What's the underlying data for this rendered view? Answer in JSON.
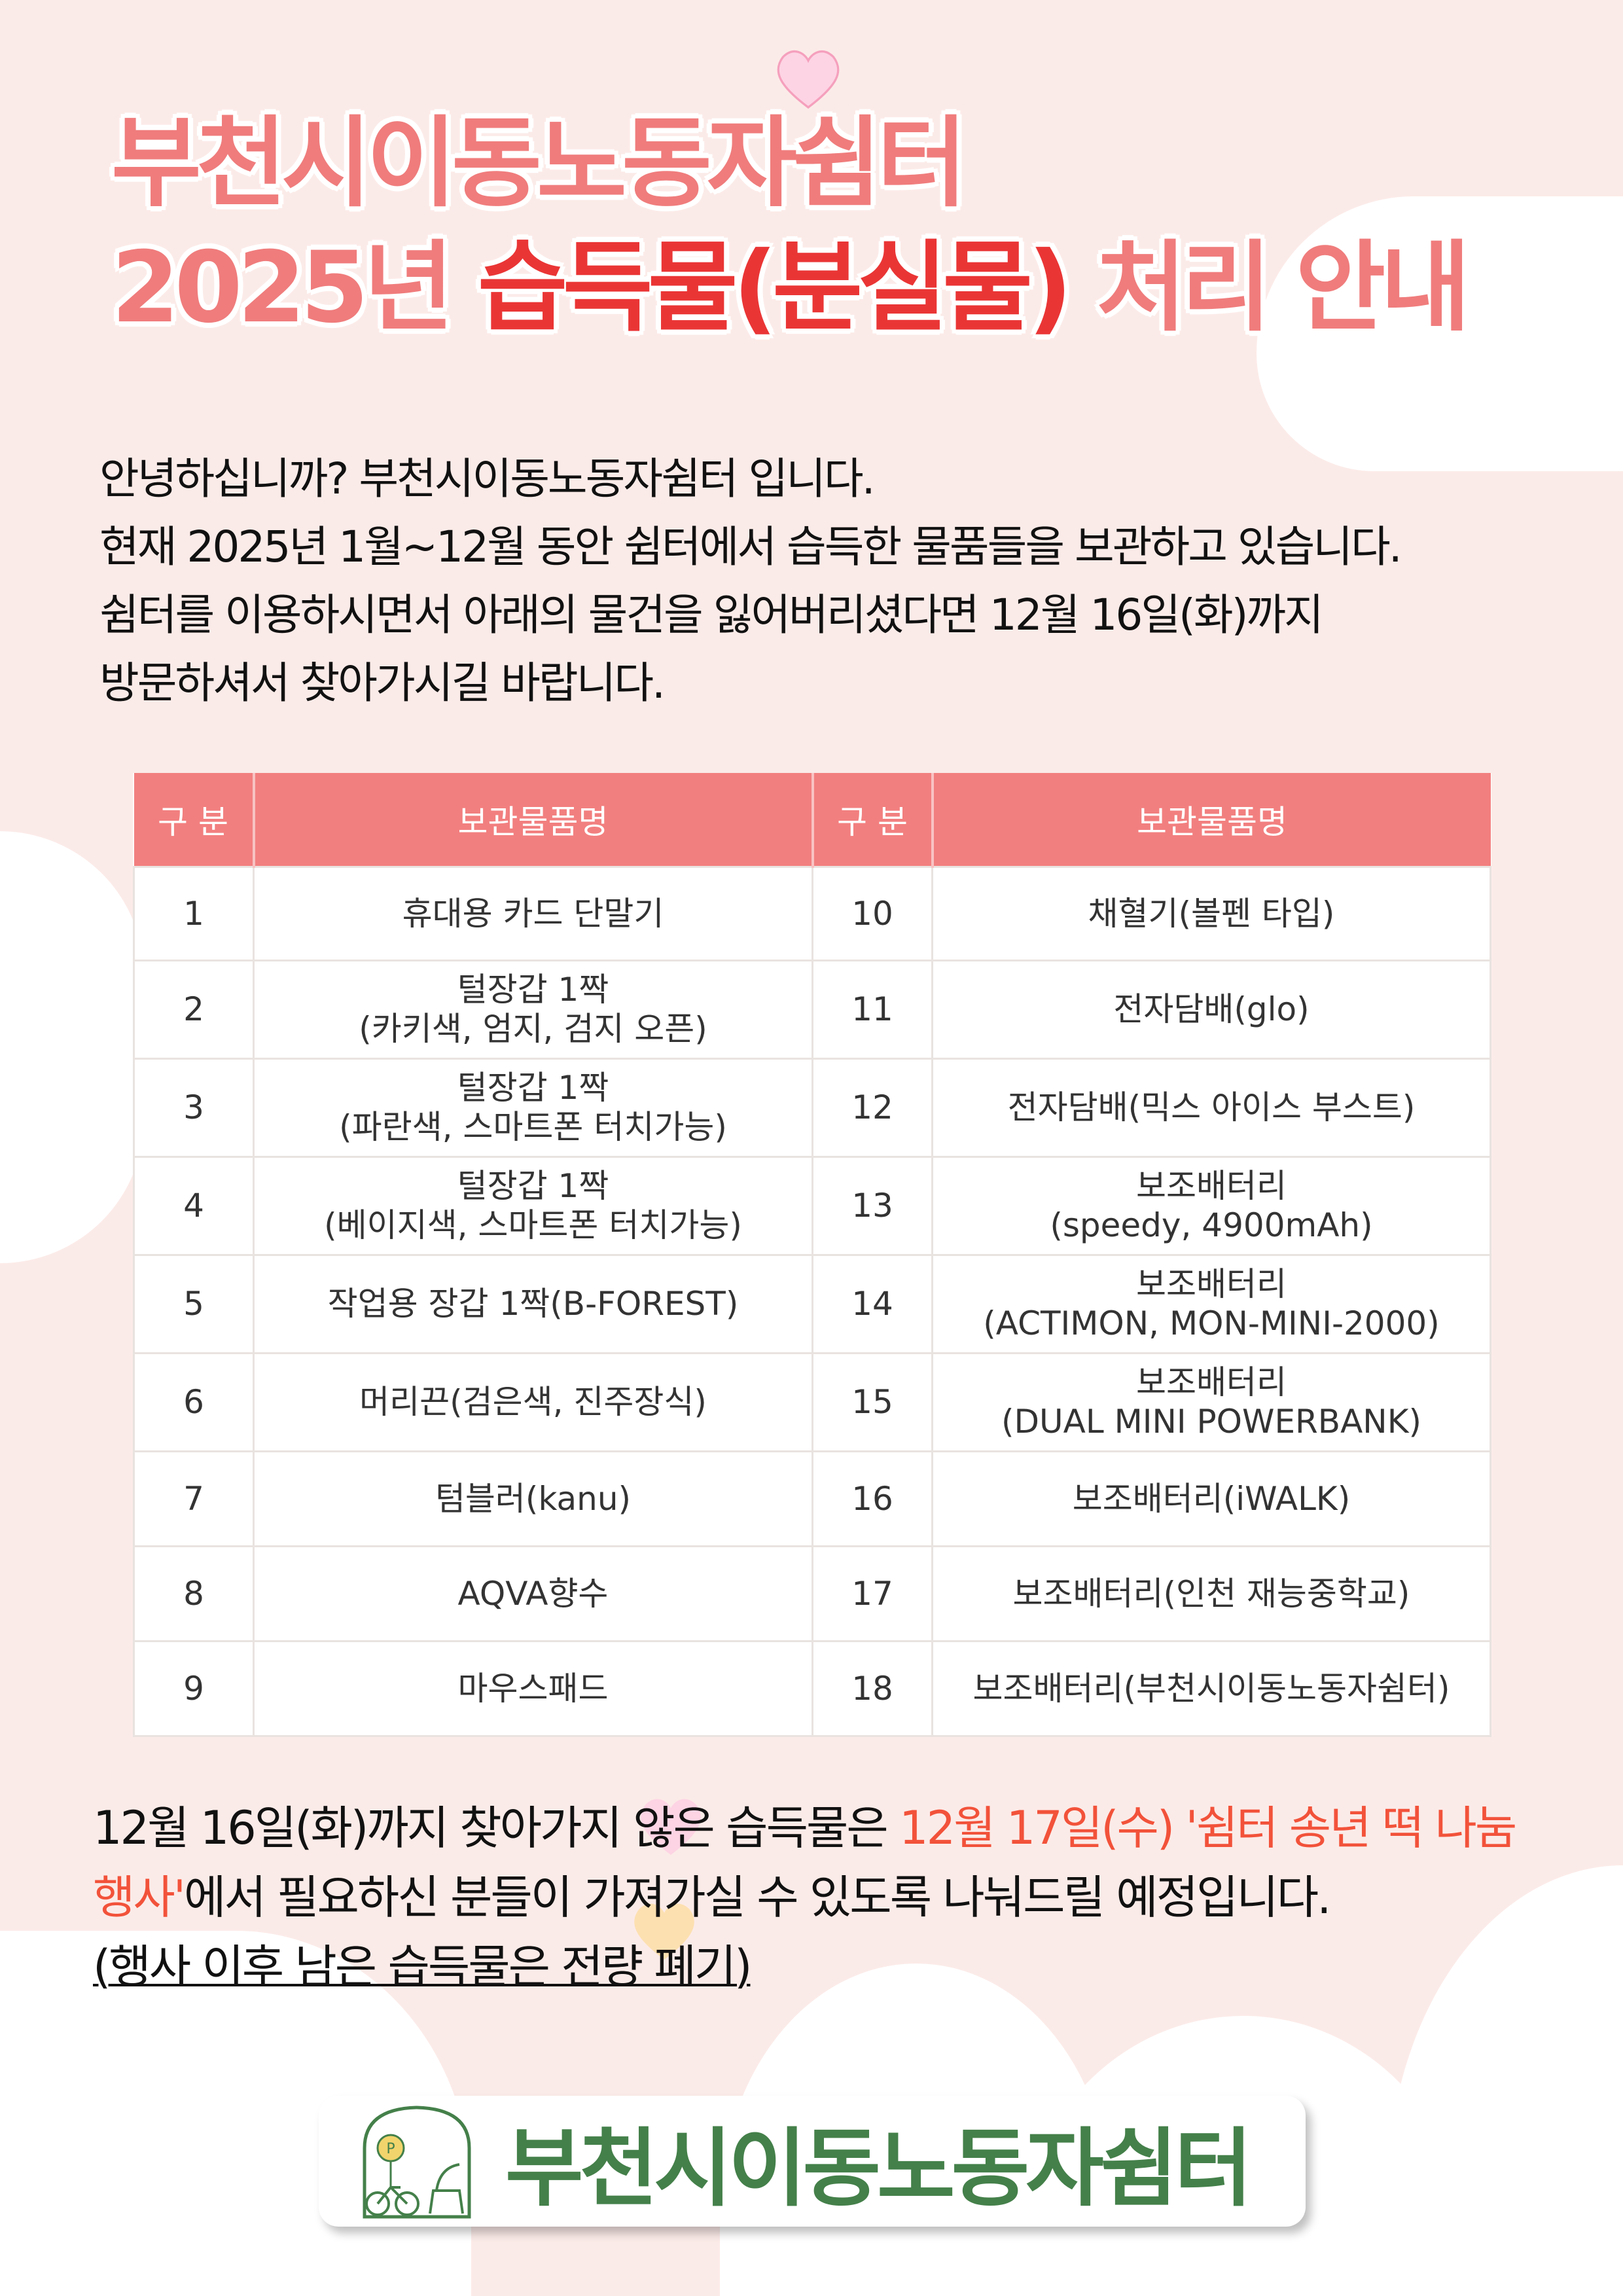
{
  "title": {
    "line1": "부천시이동노동자쉼터",
    "line2_year": "2025년",
    "line2_highlight": "습득물(분실물)",
    "line2_rest": "처리 안내"
  },
  "intro": [
    "안녕하십니까? 부천시이동노동자쉼터 입니다.",
    "현재 2025년 1월~12월 동안 쉼터에서 습득한 물품들을 보관하고 있습니다.",
    "쉼터를 이용하시면서 아래의 물건을 잃어버리셨다면 12월 16일(화)까지",
    "방문하셔서 찾아가시길 바랍니다."
  ],
  "table": {
    "headers": [
      "구 분",
      "보관물품명",
      "구 분",
      "보관물품명"
    ],
    "rows": [
      {
        "no1": "1",
        "item1": "휴대용 카드 단말기",
        "no2": "10",
        "item2": "채혈기(볼펜 타입)"
      },
      {
        "no1": "2",
        "item1": "털장갑 1짝\n(카키색, 엄지, 검지 오픈)",
        "no2": "11",
        "item2": "전자담배(glo)"
      },
      {
        "no1": "3",
        "item1": "털장갑 1짝\n(파란색, 스마트폰 터치가능)",
        "no2": "12",
        "item2": "전자담배(믹스 아이스 부스트)"
      },
      {
        "no1": "4",
        "item1": "털장갑 1짝\n(베이지색, 스마트폰 터치가능)",
        "no2": "13",
        "item2": "보조배터리\n(speedy, 4900mAh)"
      },
      {
        "no1": "5",
        "item1": "작업용 장갑 1짝(B-FOREST)",
        "no2": "14",
        "item2": "보조배터리\n(ACTIMON, MON-MINI-2000)"
      },
      {
        "no1": "6",
        "item1": "머리끈(검은색, 진주장식)",
        "no2": "15",
        "item2": "보조배터리\n(DUAL MINI POWERBANK)"
      },
      {
        "no1": "7",
        "item1": "텀블러(kanu)",
        "no2": "16",
        "item2": "보조배터리(iWALK)"
      },
      {
        "no1": "8",
        "item1": "AQVA향수",
        "no2": "17",
        "item2": "보조배터리(인천 재능중학교)"
      },
      {
        "no1": "9",
        "item1": "마우스패드",
        "no2": "18",
        "item2": "보조배터리(부천시이동노동자쉼터)"
      }
    ]
  },
  "footer": {
    "part1": "12월 16일(화)까지 찾아가지 않은 습득물은 ",
    "highlight": "12월 17일(수) '쉼터 송년 떡 나눔 행사'",
    "part2": "에서 필요하신 분들이 가져가실 수 있도록 나눠드릴 예정입니다.",
    "note": "(행사 이후 남은 습득물은 전량 폐기)"
  },
  "logo": {
    "text": "부천시이동노동자쉼터",
    "icon": "shelter-bicycle-logo-icon",
    "sign_letter": "P"
  },
  "colors": {
    "background": "#fbebe8",
    "header": "#f27f7f",
    "title": "#f07c7c",
    "title_highlight": "#ea3535",
    "highlight_text": "#f2523a",
    "logo_green": "#44804a"
  }
}
